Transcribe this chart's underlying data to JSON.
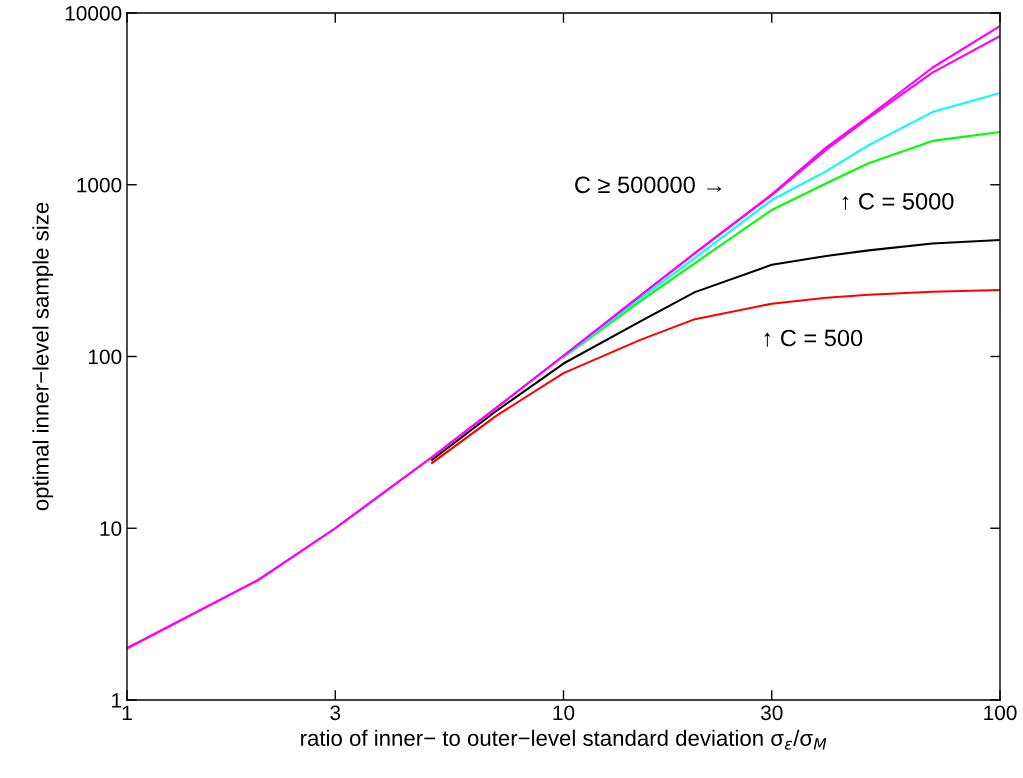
{
  "chart_data": {
    "type": "line",
    "xlabel": "ratio of inner− to outer−level standard deviation σ$_{ε}$/σ$_{M}$",
    "ylabel": "optimal inner−level sample size",
    "x": [
      1,
      2,
      3,
      5,
      7,
      10,
      15,
      20,
      30,
      40,
      50,
      70,
      100
    ],
    "series": [
      {
        "color": "#ff0000",
        "values": [
          null,
          null,
          null,
          24,
          45,
          80,
          125,
          165,
          203,
          220,
          229,
          238,
          244
        ]
      },
      {
        "color": "#000000",
        "values": [
          null,
          null,
          null,
          25,
          48,
          91,
          160,
          237,
          342,
          385,
          415,
          455,
          477
        ]
      },
      {
        "color": "#00ff00",
        "values": [
          null,
          null,
          null,
          null,
          null,
          99,
          210,
          350,
          713,
          1020,
          1333,
          1800,
          2030
        ]
      },
      {
        "color": "#00ffff",
        "values": [
          null,
          null,
          null,
          null,
          null,
          100,
          218,
          375,
          815,
          1200,
          1700,
          2650,
          3420
        ]
      },
      {
        "color": "#ff00ff",
        "values": [
          2,
          5,
          10,
          26,
          50,
          101,
          226,
          400,
          870,
          1600,
          2450,
          4500,
          7350
        ]
      },
      {
        "color": "#ff00ff",
        "values": [
          2,
          5,
          10,
          26,
          50,
          101,
          226,
          400,
          880,
          1650,
          2500,
          4800,
          8400
        ]
      }
    ],
    "annotations": [
      "C ≥ 500000 →",
      "↑ C = 5000",
      "↑ C = 500"
    ],
    "log": "xy",
    "xlim": [
      1,
      100
    ],
    "ylim": [
      1,
      10000
    ],
    "xticks": [
      1,
      3,
      10,
      30,
      100
    ],
    "yticks": [
      1,
      10,
      100,
      1000,
      10000
    ],
    "grid": false,
    "marker": "none",
    "line_style": "solid"
  }
}
